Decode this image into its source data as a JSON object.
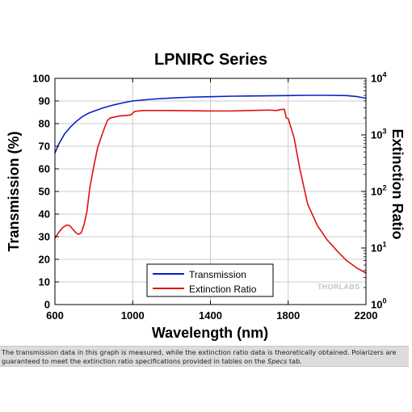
{
  "chart_data": {
    "type": "line",
    "title": "LPNIRC Series",
    "xlabel": "Wavelength (nm)",
    "ylabel": "Transmission (%)",
    "y2label": "Extinction Ratio",
    "xlim": [
      600,
      2200
    ],
    "ylim": [
      0,
      100
    ],
    "y2lim": [
      1,
      10000
    ],
    "y2scale": "log",
    "x_ticks": [
      600,
      1000,
      1400,
      1800,
      2200
    ],
    "x_tick_labels": [
      "600",
      "1000",
      "1400",
      "1800",
      "2200"
    ],
    "y_ticks": [
      0,
      10,
      20,
      30,
      40,
      50,
      60,
      70,
      80,
      90,
      100
    ],
    "y_tick_labels": [
      "0",
      "10",
      "20",
      "30",
      "40",
      "50",
      "60",
      "70",
      "80",
      "90",
      "100"
    ],
    "y2_tick_labels": [
      {
        "base": "10",
        "exp": "0"
      },
      {
        "base": "10",
        "exp": "1"
      },
      {
        "base": "10",
        "exp": "2"
      },
      {
        "base": "10",
        "exp": "3"
      },
      {
        "base": "10",
        "exp": "4"
      }
    ],
    "grid": true,
    "legend_position": "bottom-left",
    "series": [
      {
        "name": "Transmission",
        "axis": "left",
        "color": "#0a1ec8",
        "x": [
          600,
          620,
          650,
          680,
          710,
          740,
          770,
          800,
          850,
          900,
          950,
          1000,
          1100,
          1200,
          1300,
          1400,
          1500,
          1600,
          1700,
          1800,
          1900,
          2000,
          2100,
          2150,
          2200
        ],
        "y": [
          67,
          71,
          75.5,
          78.5,
          81,
          83,
          84.5,
          85.5,
          87,
          88.2,
          89.2,
          90,
          90.8,
          91.3,
          91.7,
          91.9,
          92.1,
          92.2,
          92.3,
          92.4,
          92.5,
          92.5,
          92.4,
          92,
          91.2
        ]
      },
      {
        "name": "Extinction Ratio",
        "axis": "right",
        "color": "#e01010",
        "x": [
          600,
          620,
          640,
          660,
          675,
          690,
          705,
          720,
          735,
          750,
          765,
          780,
          800,
          820,
          850,
          870,
          885,
          900,
          930,
          960,
          990,
          1010,
          1050,
          1100,
          1200,
          1300,
          1400,
          1500,
          1600,
          1700,
          1740,
          1760,
          1780,
          1790,
          1800,
          1830,
          1860,
          1900,
          1950,
          2000,
          2050,
          2100,
          2150,
          2200
        ],
        "y": [
          15,
          19,
          23,
          25.5,
          25,
          22,
          19,
          17.5,
          18.5,
          26,
          45,
          120,
          280,
          600,
          1200,
          1800,
          2000,
          2050,
          2150,
          2200,
          2250,
          2600,
          2700,
          2700,
          2700,
          2680,
          2650,
          2650,
          2700,
          2750,
          2700,
          2800,
          2850,
          2000,
          1950,
          900,
          250,
          60,
          25,
          14,
          9,
          6,
          4.5,
          3.6
        ]
      }
    ]
  },
  "watermark": "THORLABS",
  "caption": {
    "before_italic": "The transmission data in this graph is measured, while the extinction ratio data is theoretically obtained. Polarizers are guaranteed to meet the extinction ratio specifications provided in tables on the ",
    "italic": "Specs",
    "after_italic": " tab."
  }
}
